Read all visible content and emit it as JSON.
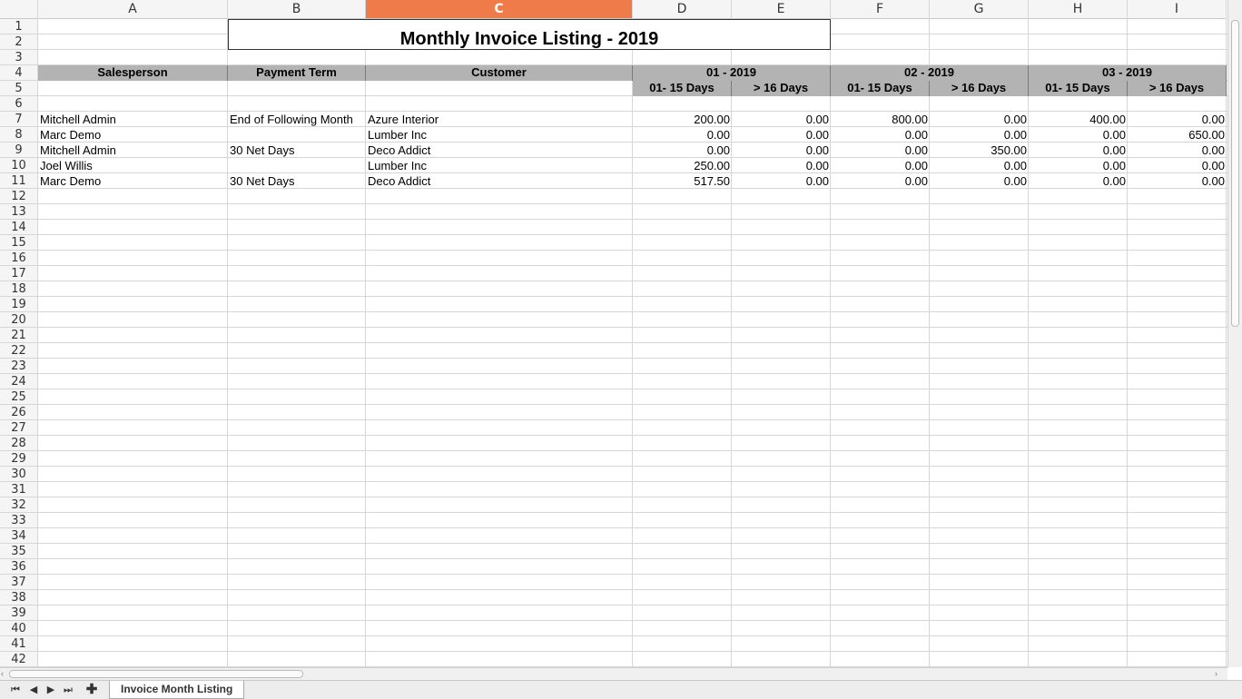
{
  "columns": [
    "A",
    "B",
    "C",
    "D",
    "E",
    "F",
    "G",
    "H",
    "I"
  ],
  "selected_column": "C",
  "row_numbers": [
    "1",
    "2",
    "3",
    "4",
    "5",
    "6",
    "7",
    "8",
    "9",
    "10",
    "11",
    "12",
    "13",
    "14",
    "15",
    "16",
    "17",
    "18",
    "19",
    "20",
    "21",
    "22",
    "23",
    "24",
    "25",
    "26",
    "27",
    "28",
    "29",
    "30",
    "31",
    "32",
    "33",
    "34",
    "35",
    "36",
    "37",
    "38",
    "39",
    "40",
    "41",
    "42"
  ],
  "title": "Monthly Invoice Listing - 2019",
  "headers": {
    "salesperson": "Salesperson",
    "payment_term": "Payment Term",
    "customer": "Customer",
    "months": [
      "01 - 2019",
      "02 - 2019",
      "03 - 2019"
    ],
    "buckets": [
      "01- 15 Days",
      "> 16 Days"
    ]
  },
  "rows": [
    {
      "salesperson": "Mitchell Admin",
      "payment_term": "End of Following Month",
      "customer": "Azure Interior",
      "values": [
        "200.00",
        "0.00",
        "800.00",
        "0.00",
        "400.00",
        "0.00"
      ]
    },
    {
      "salesperson": "Marc Demo",
      "payment_term": "",
      "customer": "Lumber Inc",
      "values": [
        "0.00",
        "0.00",
        "0.00",
        "0.00",
        "0.00",
        "650.00"
      ]
    },
    {
      "salesperson": "Mitchell Admin",
      "payment_term": "30 Net Days",
      "customer": "Deco Addict",
      "values": [
        "0.00",
        "0.00",
        "0.00",
        "350.00",
        "0.00",
        "0.00"
      ]
    },
    {
      "salesperson": "Joel Willis",
      "payment_term": "",
      "customer": "Lumber Inc",
      "values": [
        "250.00",
        "0.00",
        "0.00",
        "0.00",
        "0.00",
        "0.00"
      ]
    },
    {
      "salesperson": "Marc Demo",
      "payment_term": "30 Net Days",
      "customer": "Deco Addict",
      "values": [
        "517.50",
        "0.00",
        "0.00",
        "0.00",
        "0.00",
        "0.00"
      ]
    }
  ],
  "sheet_tab": "Invoice Month Listing",
  "icons": {
    "first": "first-sheet-icon",
    "prev": "previous-sheet-icon",
    "next": "next-sheet-icon",
    "last": "last-sheet-icon",
    "add": "add-sheet-icon"
  },
  "colors": {
    "selected_header": "#ef7b4b",
    "header_fill": "#b3b3b3",
    "gridline": "#d6d6d6"
  }
}
